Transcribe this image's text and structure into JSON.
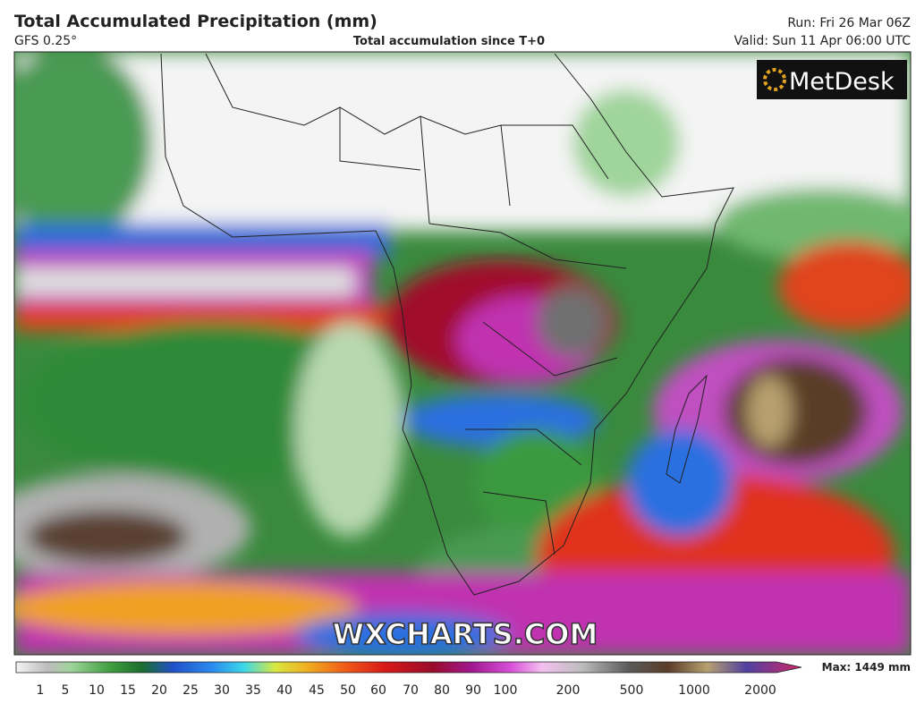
{
  "header": {
    "title": "Total Accumulated Precipitation (mm)",
    "model": "GFS 0.25°",
    "description": "Total accumulation since T+0",
    "run": "Run: Fri 26 Mar 06Z",
    "valid": "Valid: Sun 11 Apr 06:00 UTC"
  },
  "logo": "MetDesk",
  "watermark": "WXCHARTS.COM",
  "colorbar": {
    "ticks": [
      1,
      5,
      10,
      15,
      20,
      25,
      30,
      35,
      40,
      45,
      50,
      60,
      70,
      80,
      90,
      100,
      200,
      500,
      1000,
      2000
    ],
    "max_label": "Max: 1449 mm"
  }
}
